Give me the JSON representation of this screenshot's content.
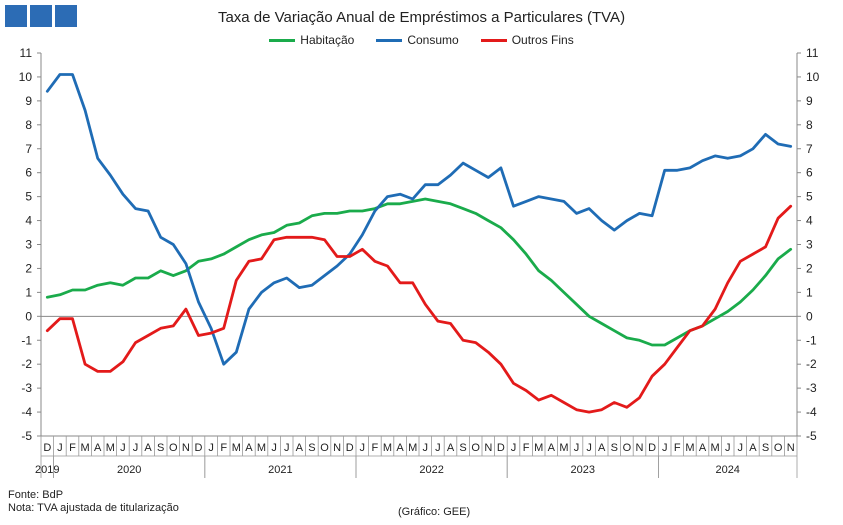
{
  "title": "Taxa de Variação Anual de Empréstimos  a Particulares (TVA)",
  "notes": {
    "source": "Fonte: BdP",
    "note": "Nota: TVA ajustada de titularização",
    "credit": "(Gráfico: GEE)"
  },
  "chart_data": {
    "type": "line",
    "title": "Taxa de Variação Anual de Empréstimos  a Particulares (TVA)",
    "ylim": [
      -5,
      11
    ],
    "yticks": [
      -5,
      -4,
      -3,
      -2,
      -1,
      0,
      1,
      2,
      3,
      4,
      5,
      6,
      7,
      8,
      9,
      10,
      11
    ],
    "grid": false,
    "legend_position": "top-center",
    "x": [
      "2019-12",
      "2020-01",
      "2020-02",
      "2020-03",
      "2020-04",
      "2020-05",
      "2020-06",
      "2020-07",
      "2020-08",
      "2020-09",
      "2020-10",
      "2020-11",
      "2020-12",
      "2021-01",
      "2021-02",
      "2021-03",
      "2021-04",
      "2021-05",
      "2021-06",
      "2021-07",
      "2021-08",
      "2021-09",
      "2021-10",
      "2021-11",
      "2021-12",
      "2022-01",
      "2022-02",
      "2022-03",
      "2022-04",
      "2022-05",
      "2022-06",
      "2022-07",
      "2022-08",
      "2022-09",
      "2022-10",
      "2022-11",
      "2022-12",
      "2023-01",
      "2023-02",
      "2023-03",
      "2023-04",
      "2023-05",
      "2023-06",
      "2023-07",
      "2023-08",
      "2023-09",
      "2023-10",
      "2023-11",
      "2023-12",
      "2024-01",
      "2024-02",
      "2024-03",
      "2024-04",
      "2024-05",
      "2024-06",
      "2024-07",
      "2024-08",
      "2024-09",
      "2024-10",
      "2024-11"
    ],
    "month_labels": [
      "D",
      "J",
      "F",
      "M",
      "A",
      "M",
      "J",
      "J",
      "A",
      "S",
      "O",
      "N",
      "D",
      "J",
      "F",
      "M",
      "A",
      "M",
      "J",
      "J",
      "A",
      "S",
      "O",
      "N",
      "D",
      "J",
      "F",
      "M",
      "A",
      "M",
      "J",
      "J",
      "A",
      "S",
      "O",
      "N",
      "D",
      "J",
      "F",
      "M",
      "A",
      "M",
      "J",
      "J",
      "A",
      "S",
      "O",
      "N",
      "D",
      "J",
      "F",
      "M",
      "A",
      "M",
      "J",
      "J",
      "A",
      "S",
      "O",
      "N"
    ],
    "year_labels": [
      {
        "label": "2019",
        "from": 0,
        "to": 0
      },
      {
        "label": "2020",
        "from": 1,
        "to": 12
      },
      {
        "label": "2021",
        "from": 13,
        "to": 24
      },
      {
        "label": "2022",
        "from": 25,
        "to": 36
      },
      {
        "label": "2023",
        "from": 37,
        "to": 48
      },
      {
        "label": "2024",
        "from": 49,
        "to": 59
      }
    ],
    "series": [
      {
        "name": "Habitação",
        "color": "#1aab4b",
        "values": [
          0.8,
          0.9,
          1.1,
          1.1,
          1.3,
          1.4,
          1.3,
          1.6,
          1.6,
          1.9,
          1.7,
          1.9,
          2.3,
          2.4,
          2.6,
          2.9,
          3.2,
          3.4,
          3.5,
          3.8,
          3.9,
          4.2,
          4.3,
          4.3,
          4.4,
          4.4,
          4.5,
          4.7,
          4.7,
          4.8,
          4.9,
          4.8,
          4.7,
          4.5,
          4.3,
          4.0,
          3.7,
          3.2,
          2.6,
          1.9,
          1.5,
          1.0,
          0.5,
          0.0,
          -0.3,
          -0.6,
          -0.9,
          -1.0,
          -1.2,
          -1.2,
          -0.9,
          -0.6,
          -0.4,
          -0.1,
          0.2,
          0.6,
          1.1,
          1.7,
          2.4,
          2.8
        ]
      },
      {
        "name": "Consumo",
        "color": "#1f6cb5",
        "values": [
          9.4,
          10.1,
          10.1,
          8.6,
          6.6,
          5.9,
          5.1,
          4.5,
          4.4,
          3.3,
          3.0,
          2.2,
          0.6,
          -0.5,
          -2.0,
          -1.5,
          0.3,
          1.0,
          1.4,
          1.6,
          1.2,
          1.3,
          1.7,
          2.1,
          2.6,
          3.4,
          4.4,
          5.0,
          5.1,
          4.9,
          5.5,
          5.5,
          5.9,
          6.4,
          6.1,
          5.8,
          6.2,
          4.6,
          4.8,
          5.0,
          4.9,
          4.8,
          4.3,
          4.5,
          4.0,
          3.6,
          4.0,
          4.3,
          4.2,
          6.1,
          6.1,
          6.2,
          6.5,
          6.7,
          6.6,
          6.7,
          7.0,
          7.6,
          7.2,
          7.1
        ]
      },
      {
        "name": "Outros Fins",
        "color": "#e31a1a",
        "values": [
          -0.6,
          -0.1,
          -0.1,
          -2.0,
          -2.3,
          -2.3,
          -1.9,
          -1.1,
          -0.8,
          -0.5,
          -0.4,
          0.3,
          -0.8,
          -0.7,
          -0.5,
          1.5,
          2.3,
          2.4,
          3.2,
          3.3,
          3.3,
          3.3,
          3.2,
          2.5,
          2.5,
          2.8,
          2.3,
          2.1,
          1.4,
          1.4,
          0.5,
          -0.2,
          -0.3,
          -1.0,
          -1.1,
          -1.5,
          -2.0,
          -2.8,
          -3.1,
          -3.5,
          -3.3,
          -3.6,
          -3.9,
          -4.0,
          -3.9,
          -3.6,
          -3.8,
          -3.4,
          -2.5,
          -2.0,
          -1.3,
          -0.6,
          -0.4,
          0.3,
          1.4,
          2.3,
          2.6,
          2.9,
          4.1,
          4.6
        ]
      }
    ]
  }
}
